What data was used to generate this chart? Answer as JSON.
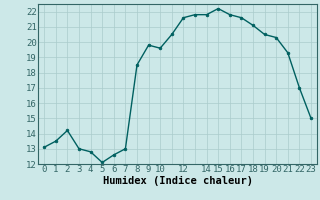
{
  "x": [
    0,
    1,
    2,
    3,
    4,
    5,
    6,
    7,
    8,
    9,
    10,
    11,
    12,
    13,
    14,
    15,
    16,
    17,
    18,
    19,
    20,
    21,
    22,
    23
  ],
  "y": [
    13.1,
    13.5,
    14.2,
    13.0,
    12.8,
    12.1,
    12.6,
    13.0,
    18.5,
    19.8,
    19.6,
    20.5,
    21.6,
    21.8,
    21.8,
    22.2,
    21.8,
    21.6,
    21.1,
    20.5,
    20.3,
    19.3,
    17.0,
    15.0
  ],
  "line_color": "#006060",
  "marker": "o",
  "marker_size": 2,
  "line_width": 1.0,
  "bg_color": "#cce8e8",
  "grid_color": "#aacccc",
  "xlabel": "Humidex (Indice chaleur)",
  "xlim": [
    -0.5,
    23.5
  ],
  "ylim": [
    12,
    22.5
  ],
  "yticks": [
    12,
    13,
    14,
    15,
    16,
    17,
    18,
    19,
    20,
    21,
    22
  ],
  "xtick_labels": [
    "0",
    "1",
    "2",
    "3",
    "4",
    "5",
    "6",
    "7",
    "8",
    "9",
    "10",
    "",
    "12",
    "",
    "14",
    "15",
    "16",
    "17",
    "18",
    "19",
    "20",
    "21",
    "22",
    "23"
  ],
  "xticks": [
    0,
    1,
    2,
    3,
    4,
    5,
    6,
    7,
    8,
    9,
    10,
    11,
    12,
    13,
    14,
    15,
    16,
    17,
    18,
    19,
    20,
    21,
    22,
    23
  ],
  "tick_fontsize": 6.5,
  "xlabel_fontsize": 7.5,
  "spine_color": "#336666"
}
